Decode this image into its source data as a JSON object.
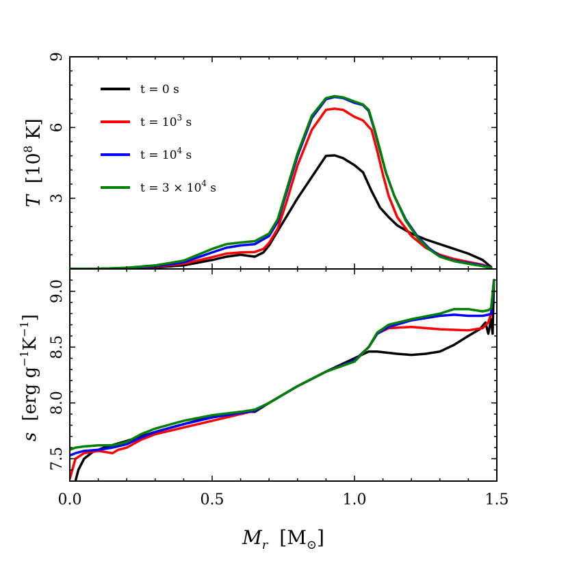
{
  "chart_data": [
    {
      "type": "line",
      "panel": "top",
      "ylabel": "T [10^8 K]",
      "ylabel_parts": {
        "symbol": "T",
        "unit_base": "[10",
        "unit_exp": "8",
        "unit_tail": " K]"
      },
      "xlim": [
        0.0,
        1.5
      ],
      "ylim": [
        0,
        9
      ],
      "yticks": [
        3,
        6,
        9
      ],
      "ytick_labels": [
        "3",
        "6",
        "9"
      ],
      "legend_position": "upper-left",
      "series": [
        {
          "name": "t = 0 s",
          "color": "#000000",
          "x": [
            0,
            0.1,
            0.2,
            0.3,
            0.4,
            0.5,
            0.55,
            0.6,
            0.65,
            0.68,
            0.7,
            0.75,
            0.8,
            0.85,
            0.9,
            0.93,
            0.96,
            1.0,
            1.03,
            1.06,
            1.09,
            1.12,
            1.15,
            1.2,
            1.25,
            1.3,
            1.35,
            1.4,
            1.45,
            1.48
          ],
          "y": [
            0,
            0.01,
            0.03,
            0.07,
            0.15,
            0.38,
            0.52,
            0.6,
            0.52,
            0.7,
            1.0,
            2.0,
            3.0,
            3.9,
            4.8,
            4.82,
            4.7,
            4.4,
            4.1,
            3.3,
            2.6,
            2.2,
            1.85,
            1.5,
            1.25,
            1.05,
            0.85,
            0.65,
            0.38,
            0.08
          ]
        },
        {
          "name": "t = 10^3 s",
          "color": "#ff0000",
          "x": [
            0,
            0.1,
            0.2,
            0.3,
            0.4,
            0.5,
            0.55,
            0.6,
            0.65,
            0.68,
            0.7,
            0.73,
            0.76,
            0.8,
            0.85,
            0.9,
            0.93,
            0.96,
            1.0,
            1.03,
            1.06,
            1.08,
            1.1,
            1.12,
            1.15,
            1.2,
            1.25,
            1.3,
            1.35,
            1.4,
            1.45,
            1.48
          ],
          "y": [
            0,
            0.01,
            0.04,
            0.1,
            0.22,
            0.5,
            0.65,
            0.7,
            0.72,
            0.85,
            1.1,
            1.7,
            2.8,
            4.4,
            5.9,
            6.75,
            6.8,
            6.75,
            6.45,
            6.3,
            5.9,
            5.0,
            4.0,
            3.1,
            2.2,
            1.4,
            0.9,
            0.6,
            0.42,
            0.3,
            0.18,
            0.05
          ]
        },
        {
          "name": "t = 10^4 s",
          "color": "#0000ff",
          "x": [
            0,
            0.1,
            0.2,
            0.3,
            0.4,
            0.5,
            0.55,
            0.6,
            0.65,
            0.7,
            0.73,
            0.76,
            0.8,
            0.85,
            0.9,
            0.93,
            0.96,
            1.0,
            1.03,
            1.05,
            1.07,
            1.09,
            1.11,
            1.14,
            1.18,
            1.22,
            1.26,
            1.3,
            1.35,
            1.4,
            1.45,
            1.48
          ],
          "y": [
            0,
            0.01,
            0.04,
            0.12,
            0.28,
            0.7,
            0.9,
            1.0,
            1.05,
            1.4,
            2.0,
            3.2,
            4.8,
            6.4,
            7.2,
            7.3,
            7.25,
            7.05,
            6.95,
            6.7,
            5.9,
            5.0,
            4.1,
            3.1,
            2.1,
            1.4,
            0.9,
            0.55,
            0.35,
            0.25,
            0.15,
            0.05
          ]
        },
        {
          "name": "t = 3 × 10^4 s",
          "color": "#008000",
          "x": [
            0,
            0.1,
            0.2,
            0.3,
            0.4,
            0.5,
            0.55,
            0.6,
            0.65,
            0.7,
            0.73,
            0.76,
            0.8,
            0.85,
            0.9,
            0.93,
            0.96,
            1.0,
            1.03,
            1.05,
            1.07,
            1.09,
            1.11,
            1.14,
            1.18,
            1.22,
            1.26,
            1.3,
            1.35,
            1.4,
            1.45,
            1.48
          ],
          "y": [
            0,
            0.01,
            0.05,
            0.15,
            0.35,
            0.85,
            1.05,
            1.12,
            1.18,
            1.5,
            2.1,
            3.3,
            4.9,
            6.5,
            7.25,
            7.33,
            7.28,
            7.1,
            6.98,
            6.75,
            5.95,
            5.05,
            4.1,
            3.1,
            2.05,
            1.35,
            0.85,
            0.52,
            0.33,
            0.22,
            0.12,
            0.04
          ]
        }
      ]
    },
    {
      "type": "line",
      "panel": "bottom",
      "xlabel": "M_r [M_⊙]",
      "xlabel_parts": {
        "symbol": "M",
        "sub": "r",
        "unit": "[M",
        "unit_sub": "⊙",
        "unit_tail": "]"
      },
      "ylabel": "s [erg g^-1 K^-1]",
      "ylabel_parts": {
        "symbol": "s",
        "unit_a": "[erg g",
        "exp_a": "−1",
        "unit_b": "K",
        "exp_b": "−1",
        "unit_tail": "]"
      },
      "xlim": [
        0.0,
        1.5
      ],
      "ylim": [
        7.3,
        9.2
      ],
      "xticks": [
        0.0,
        0.5,
        1.0,
        1.5
      ],
      "xtick_labels": [
        "0.0",
        "0.5",
        "1.0",
        "1.5"
      ],
      "yticks": [
        7.5,
        8.0,
        8.5,
        9.0
      ],
      "ytick_labels": [
        "7.5",
        "8.0",
        "8.5",
        "9.0"
      ],
      "series": [
        {
          "name": "t = 0 s",
          "color": "#000000",
          "x": [
            0.02,
            0.03,
            0.05,
            0.08,
            0.12,
            0.2,
            0.3,
            0.4,
            0.5,
            0.6,
            0.65,
            0.7,
            0.8,
            0.9,
            1.0,
            1.05,
            1.08,
            1.15,
            1.2,
            1.25,
            1.3,
            1.35,
            1.4,
            1.44,
            1.46,
            1.47,
            1.48,
            1.485,
            1.49
          ],
          "y": [
            7.3,
            7.4,
            7.5,
            7.56,
            7.6,
            7.66,
            7.74,
            7.81,
            7.88,
            7.92,
            7.92,
            8.0,
            8.15,
            8.28,
            8.4,
            8.46,
            8.46,
            8.44,
            8.43,
            8.44,
            8.46,
            8.52,
            8.6,
            8.66,
            8.72,
            8.62,
            8.75,
            8.62,
            9.1
          ]
        },
        {
          "name": "t = 10^3 s",
          "color": "#ff0000",
          "x": [
            0,
            0.02,
            0.05,
            0.1,
            0.15,
            0.17,
            0.2,
            0.25,
            0.3,
            0.4,
            0.5,
            0.6,
            0.65,
            0.7,
            0.8,
            0.9,
            1.0,
            1.05,
            1.08,
            1.12,
            1.2,
            1.3,
            1.4,
            1.45,
            1.47,
            1.48,
            1.49
          ],
          "y": [
            7.32,
            7.5,
            7.55,
            7.57,
            7.55,
            7.58,
            7.6,
            7.67,
            7.72,
            7.78,
            7.84,
            7.9,
            7.93,
            8.0,
            8.15,
            8.28,
            8.38,
            8.5,
            8.62,
            8.67,
            8.68,
            8.66,
            8.65,
            8.67,
            8.72,
            8.8,
            9.1
          ]
        },
        {
          "name": "t = 10^4 s",
          "color": "#0000ff",
          "x": [
            0,
            0.02,
            0.05,
            0.1,
            0.15,
            0.2,
            0.25,
            0.3,
            0.4,
            0.5,
            0.6,
            0.65,
            0.7,
            0.8,
            0.9,
            1.0,
            1.05,
            1.08,
            1.12,
            1.2,
            1.3,
            1.35,
            1.4,
            1.45,
            1.47,
            1.48,
            1.49
          ],
          "y": [
            7.53,
            7.55,
            7.57,
            7.58,
            7.6,
            7.63,
            7.69,
            7.74,
            7.81,
            7.87,
            7.91,
            7.93,
            8.0,
            8.15,
            8.28,
            8.38,
            8.5,
            8.62,
            8.68,
            8.74,
            8.78,
            8.79,
            8.78,
            8.78,
            8.79,
            8.8,
            9.1
          ]
        },
        {
          "name": "t = 3 × 10^4 s",
          "color": "#008000",
          "x": [
            0,
            0.02,
            0.05,
            0.1,
            0.15,
            0.2,
            0.25,
            0.3,
            0.4,
            0.5,
            0.6,
            0.65,
            0.7,
            0.8,
            0.9,
            1.0,
            1.05,
            1.08,
            1.12,
            1.2,
            1.3,
            1.35,
            1.4,
            1.45,
            1.47,
            1.48,
            1.49
          ],
          "y": [
            7.58,
            7.6,
            7.61,
            7.62,
            7.62,
            7.65,
            7.72,
            7.77,
            7.84,
            7.89,
            7.92,
            7.94,
            8.0,
            8.15,
            8.28,
            8.37,
            8.5,
            8.63,
            8.7,
            8.75,
            8.8,
            8.84,
            8.84,
            8.82,
            8.83,
            8.85,
            9.1
          ]
        }
      ]
    }
  ],
  "legend": {
    "entries": [
      {
        "prefix": "t = 0 s",
        "sup": "",
        "suffix": "",
        "color": "#000000"
      },
      {
        "prefix": "t = 10",
        "sup": "3",
        "suffix": " s",
        "color": "#ff0000"
      },
      {
        "prefix": "t = 10",
        "sup": "4",
        "suffix": " s",
        "color": "#0000ff"
      },
      {
        "prefix": "t = 3 × 10",
        "sup": "4",
        "suffix": " s",
        "color": "#008000"
      }
    ]
  }
}
